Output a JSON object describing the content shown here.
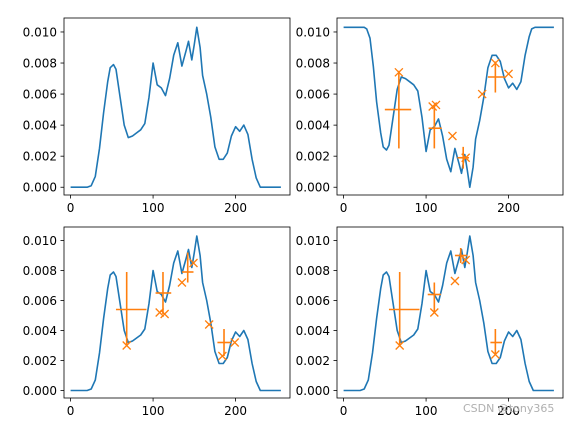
{
  "watermark": "CSDN @tony365",
  "colors": {
    "line": "#1f77b4",
    "marker": "#ff7f0e",
    "axes": "#000000",
    "background": "#ffffff"
  },
  "chart_data": [
    {
      "type": "line",
      "xlim": [
        -8,
        266
      ],
      "ylim": [
        -0.0005,
        0.0109
      ],
      "xticks": [
        0,
        100,
        200
      ],
      "yticks": [
        0.0,
        0.002,
        0.004,
        0.006,
        0.008,
        0.01
      ],
      "ytick_labels": [
        "0.000",
        "0.002",
        "0.004",
        "0.006",
        "0.008",
        "0.010"
      ],
      "series": [
        {
          "x": [
            0,
            10,
            20,
            25,
            30,
            35,
            40,
            45,
            48,
            52,
            55,
            60,
            65,
            70,
            75,
            80,
            85,
            90,
            95,
            100,
            105,
            110,
            115,
            120,
            125,
            130,
            135,
            140,
            143,
            147,
            150,
            153,
            157,
            160,
            165,
            170,
            175,
            180,
            185,
            190,
            195,
            200,
            205,
            210,
            215,
            220,
            225,
            230,
            240,
            255
          ],
          "y": [
            0,
            0,
            0,
            0.0001,
            0.0007,
            0.0025,
            0.0048,
            0.0068,
            0.0077,
            0.0079,
            0.0076,
            0.0058,
            0.004,
            0.0032,
            0.0033,
            0.0035,
            0.0037,
            0.0041,
            0.0058,
            0.008,
            0.0066,
            0.0064,
            0.0059,
            0.007,
            0.0085,
            0.0093,
            0.0078,
            0.0088,
            0.0094,
            0.0082,
            0.0092,
            0.0103,
            0.009,
            0.0072,
            0.006,
            0.0045,
            0.0026,
            0.0018,
            0.0018,
            0.0022,
            0.0033,
            0.0039,
            0.0036,
            0.004,
            0.0034,
            0.0018,
            0.0006,
            0,
            0,
            0
          ]
        }
      ]
    },
    {
      "type": "line",
      "xlim": [
        -8,
        266
      ],
      "ylim": [
        -0.0005,
        0.0109
      ],
      "xticks": [
        0,
        100,
        200
      ],
      "yticks": [
        0.0,
        0.002,
        0.004,
        0.006,
        0.008,
        0.01
      ],
      "ytick_labels": [
        "0.000",
        "0.002",
        "0.004",
        "0.006",
        "0.008",
        "0.010"
      ],
      "series": [
        {
          "x": [
            0,
            10,
            20,
            25,
            28,
            32,
            36,
            40,
            45,
            48,
            52,
            55,
            60,
            65,
            70,
            75,
            80,
            85,
            90,
            95,
            100,
            105,
            110,
            115,
            120,
            125,
            130,
            135,
            140,
            143,
            147,
            150,
            153,
            157,
            160,
            165,
            170,
            175,
            180,
            185,
            190,
            195,
            200,
            205,
            210,
            215,
            220,
            225,
            228,
            232,
            240,
            255
          ],
          "y": [
            0.0103,
            0.0103,
            0.0103,
            0.0103,
            0.0102,
            0.0096,
            0.0078,
            0.0055,
            0.0035,
            0.0026,
            0.0024,
            0.0027,
            0.0045,
            0.0063,
            0.0071,
            0.007,
            0.0068,
            0.0066,
            0.0062,
            0.0045,
            0.0023,
            0.0037,
            0.0039,
            0.0044,
            0.0033,
            0.0018,
            0.001,
            0.0025,
            0.0015,
            0.0009,
            0.0021,
            0.0011,
            0.0,
            0.0013,
            0.0031,
            0.0043,
            0.0058,
            0.0077,
            0.0085,
            0.0085,
            0.0081,
            0.007,
            0.0064,
            0.0067,
            0.0063,
            0.0068,
            0.0085,
            0.0097,
            0.0102,
            0.0103,
            0.0103,
            0.0103
          ]
        }
      ],
      "markers": [
        {
          "x": 67,
          "y": 0.0074
        },
        {
          "x": 108,
          "y": 0.0052
        },
        {
          "x": 112,
          "y": 0.0053
        },
        {
          "x": 132,
          "y": 0.0033
        },
        {
          "x": 148,
          "y": 0.0019
        },
        {
          "x": 168,
          "y": 0.006
        },
        {
          "x": 184,
          "y": 0.008
        },
        {
          "x": 200,
          "y": 0.0073
        }
      ],
      "crosses": [
        {
          "x": 67,
          "y": 0.005,
          "hx": [
            50,
            82
          ],
          "vy": [
            0.0025,
            0.0075
          ]
        },
        {
          "x": 110,
          "y": 0.0038,
          "hx": [
            103,
            119
          ],
          "vy": [
            0.0025,
            0.0053
          ]
        },
        {
          "x": 145,
          "y": 0.0019,
          "hx": [
            138,
            152
          ],
          "vy": [
            0.0012,
            0.0026
          ]
        },
        {
          "x": 184,
          "y": 0.0071,
          "hx": [
            175,
            195
          ],
          "vy": [
            0.0061,
            0.0081
          ]
        }
      ]
    },
    {
      "type": "line",
      "xlim": [
        -8,
        266
      ],
      "ylim": [
        -0.0005,
        0.0109
      ],
      "xticks": [
        0,
        100,
        200
      ],
      "yticks": [
        0.0,
        0.002,
        0.004,
        0.006,
        0.008,
        0.01
      ],
      "ytick_labels": [
        "0.000",
        "0.002",
        "0.004",
        "0.006",
        "0.008",
        "0.010"
      ],
      "series": [
        {
          "x": [
            0,
            10,
            20,
            25,
            30,
            35,
            40,
            45,
            48,
            52,
            55,
            60,
            65,
            70,
            75,
            80,
            85,
            90,
            95,
            100,
            105,
            110,
            115,
            120,
            125,
            130,
            135,
            140,
            143,
            147,
            150,
            153,
            157,
            160,
            165,
            170,
            175,
            180,
            185,
            190,
            195,
            200,
            205,
            210,
            215,
            220,
            225,
            230,
            240,
            255
          ],
          "y": [
            0,
            0,
            0,
            0.0001,
            0.0007,
            0.0025,
            0.0048,
            0.0068,
            0.0077,
            0.0079,
            0.0076,
            0.0058,
            0.004,
            0.0032,
            0.0033,
            0.0035,
            0.0037,
            0.0041,
            0.0058,
            0.008,
            0.0066,
            0.0064,
            0.0059,
            0.007,
            0.0085,
            0.0093,
            0.0078,
            0.0088,
            0.0094,
            0.0082,
            0.0092,
            0.0103,
            0.009,
            0.0072,
            0.006,
            0.0045,
            0.0026,
            0.0018,
            0.0018,
            0.0022,
            0.0033,
            0.0039,
            0.0036,
            0.004,
            0.0034,
            0.0018,
            0.0006,
            0,
            0,
            0
          ]
        }
      ],
      "markers": [
        {
          "x": 68,
          "y": 0.003
        },
        {
          "x": 108,
          "y": 0.0052
        },
        {
          "x": 114,
          "y": 0.0051
        },
        {
          "x": 135,
          "y": 0.0072
        },
        {
          "x": 149,
          "y": 0.0085
        },
        {
          "x": 168,
          "y": 0.0044
        },
        {
          "x": 184,
          "y": 0.0023
        },
        {
          "x": 199,
          "y": 0.0032
        }
      ],
      "crosses": [
        {
          "x": 68,
          "y": 0.0054,
          "hx": [
            55,
            92
          ],
          "vy": [
            0.003,
            0.0079
          ]
        },
        {
          "x": 112,
          "y": 0.0065,
          "hx": [
            103,
            122
          ],
          "vy": [
            0.0051,
            0.0079
          ]
        },
        {
          "x": 142,
          "y": 0.0079,
          "hx": [
            135,
            149
          ],
          "vy": [
            0.0072,
            0.0092
          ]
        },
        {
          "x": 186,
          "y": 0.0032,
          "hx": [
            178,
            195
          ],
          "vy": [
            0.0023,
            0.0041
          ]
        }
      ]
    },
    {
      "type": "line",
      "xlim": [
        -8,
        266
      ],
      "ylim": [
        -0.0005,
        0.0109
      ],
      "xticks": [
        0,
        100,
        200
      ],
      "yticks": [
        0.0,
        0.002,
        0.004,
        0.006,
        0.008,
        0.01
      ],
      "ytick_labels": [
        "0.000",
        "0.002",
        "0.004",
        "0.006",
        "0.008",
        "0.010"
      ],
      "series": [
        {
          "x": [
            0,
            10,
            20,
            25,
            30,
            35,
            40,
            45,
            48,
            52,
            55,
            60,
            65,
            70,
            75,
            80,
            85,
            90,
            95,
            100,
            105,
            110,
            115,
            120,
            125,
            130,
            135,
            140,
            143,
            147,
            150,
            153,
            157,
            160,
            165,
            170,
            175,
            180,
            185,
            190,
            195,
            200,
            205,
            210,
            215,
            220,
            225,
            230,
            240,
            255
          ],
          "y": [
            0,
            0,
            0,
            0.0001,
            0.0007,
            0.0025,
            0.0048,
            0.0068,
            0.0077,
            0.0079,
            0.0076,
            0.0058,
            0.004,
            0.0032,
            0.0033,
            0.0035,
            0.0037,
            0.0041,
            0.0058,
            0.008,
            0.0066,
            0.0064,
            0.0059,
            0.007,
            0.0085,
            0.0093,
            0.0078,
            0.0088,
            0.0094,
            0.0082,
            0.0092,
            0.0103,
            0.009,
            0.0072,
            0.006,
            0.0045,
            0.0026,
            0.0018,
            0.0018,
            0.0022,
            0.0033,
            0.0039,
            0.0036,
            0.004,
            0.0034,
            0.0018,
            0.0006,
            0,
            0,
            0
          ]
        }
      ],
      "markers": [
        {
          "x": 68,
          "y": 0.003
        },
        {
          "x": 110,
          "y": 0.0052
        },
        {
          "x": 135,
          "y": 0.0073
        },
        {
          "x": 148,
          "y": 0.0087
        },
        {
          "x": 184,
          "y": 0.0024
        }
      ],
      "crosses": [
        {
          "x": 68,
          "y": 0.0054,
          "hx": [
            55,
            92
          ],
          "vy": [
            0.003,
            0.0079
          ]
        },
        {
          "x": 110,
          "y": 0.0064,
          "hx": [
            102,
            118
          ],
          "vy": [
            0.0052,
            0.0072
          ]
        },
        {
          "x": 142,
          "y": 0.009,
          "hx": [
            135,
            150
          ],
          "vy": [
            0.0085,
            0.0095
          ]
        },
        {
          "x": 184,
          "y": 0.0032,
          "hx": [
            178,
            192
          ],
          "vy": [
            0.0024,
            0.0041
          ]
        }
      ]
    }
  ]
}
